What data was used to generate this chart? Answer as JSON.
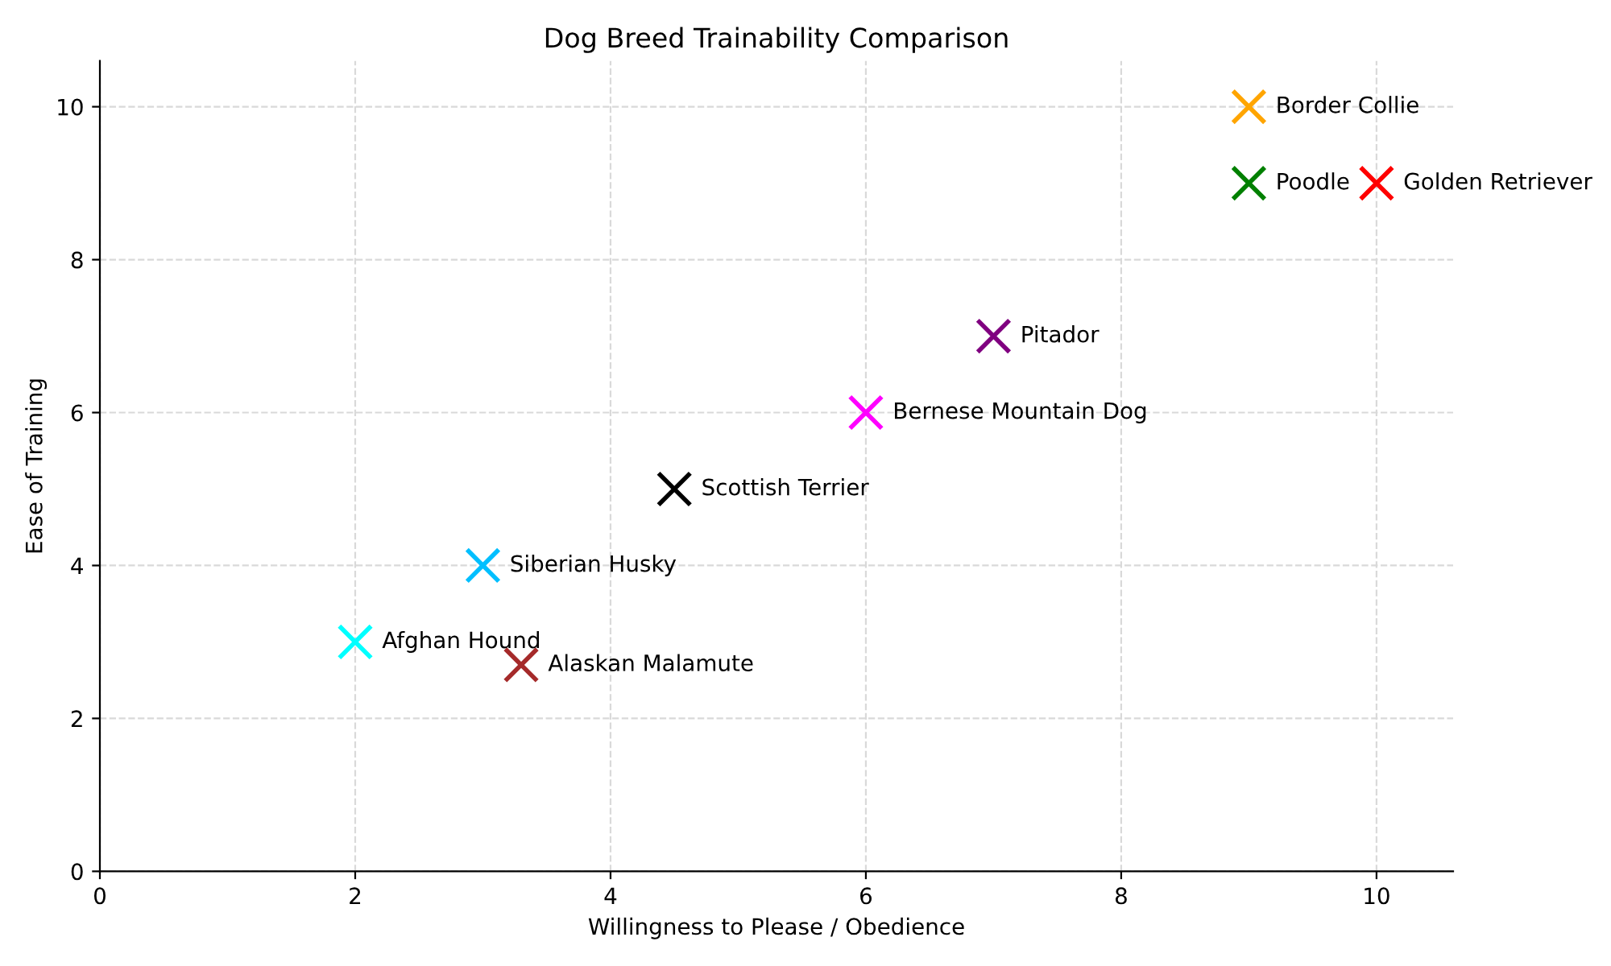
{
  "chart_data": {
    "type": "scatter",
    "title": "Dog Breed Trainability Comparison",
    "xlabel": "Willingness to Please / Obedience",
    "ylabel": "Ease of Training",
    "series": [
      {
        "name": "Border Collie",
        "color": "#ffa500",
        "x": [
          9
        ],
        "values": [
          10
        ]
      },
      {
        "name": "Poodle",
        "color": "#008000",
        "x": [
          9
        ],
        "values": [
          9
        ]
      },
      {
        "name": "Golden Retriever",
        "color": "#ff0000",
        "x": [
          10
        ],
        "values": [
          9
        ]
      },
      {
        "name": "Pitador",
        "color": "#800080",
        "x": [
          7
        ],
        "values": [
          7
        ]
      },
      {
        "name": "Bernese Mountain Dog",
        "color": "#ff00ff",
        "x": [
          6
        ],
        "values": [
          6
        ]
      },
      {
        "name": "Scottish Terrier",
        "color": "#000000",
        "x": [
          4.5
        ],
        "values": [
          5
        ]
      },
      {
        "name": "Siberian Husky",
        "color": "#00bfff",
        "x": [
          3
        ],
        "values": [
          4
        ]
      },
      {
        "name": "Afghan Hound",
        "color": "#00ffff",
        "x": [
          2
        ],
        "values": [
          3
        ]
      },
      {
        "name": "Alaskan Malamute",
        "color": "#a52a2a",
        "x": [
          3.3
        ],
        "values": [
          2.7
        ]
      }
    ],
    "xlim": [
      0,
      10.6
    ],
    "ylim": [
      0,
      10.6
    ],
    "xticks": [
      0,
      2,
      4,
      6,
      8,
      10
    ],
    "yticks": [
      0,
      2,
      4,
      6,
      8,
      10
    ],
    "grid": true,
    "legend": false,
    "marker": "cross"
  }
}
